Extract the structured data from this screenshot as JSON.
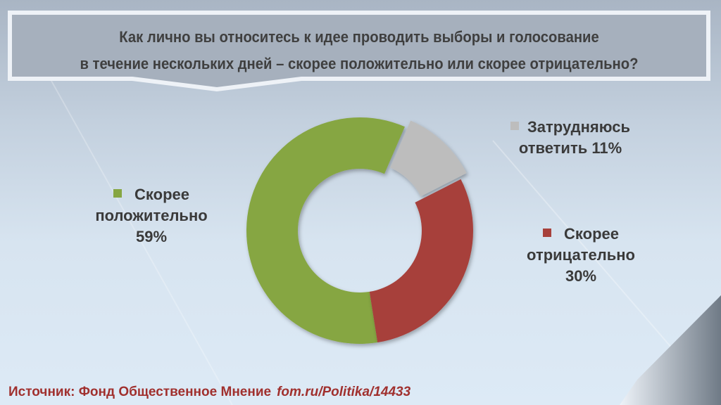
{
  "chart_data": {
    "type": "pie",
    "title": "Как лично вы относитесь к идее проводить выборы и голосование в течение нескольких дней – скорее положительно или скорее отрицательно?",
    "title_lines": [
      "Как лично вы относитесь к идее проводить выборы и голосование",
      "в течение нескольких дней – скорее положительно или скорее отрицательно?"
    ],
    "donut": true,
    "slices": [
      {
        "label": "Скорее положительно",
        "label_lines": [
          "Скорее",
          "положительно"
        ],
        "value": 59,
        "value_label": "59%",
        "color": "#86a642"
      },
      {
        "label": "Затрудняюсь ответить",
        "label_lines": [
          "Затрудняюсь",
          "ответить 11%"
        ],
        "value": 11,
        "value_label": "11%",
        "color": "#bdbdbd",
        "exploded": true
      },
      {
        "label": "Скорее отрицательно",
        "label_lines": [
          "Скорее",
          "отрицательно"
        ],
        "value": 30,
        "value_label": "30%",
        "color": "#a7403b"
      }
    ],
    "legend_placement": "around"
  },
  "source": {
    "label": "Источник: Фонд Общественное Мнение",
    "link": "fom.ru/Politika/14433"
  }
}
